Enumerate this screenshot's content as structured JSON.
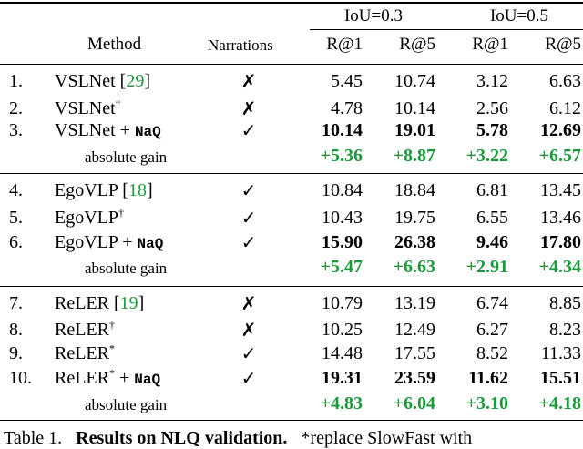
{
  "header": {
    "method": "Method",
    "narrations": "Narrations",
    "group1": "IoU=0.3",
    "group2": "IoU=0.5",
    "metrics": [
      "R@1",
      "R@5",
      "R@1",
      "R@5"
    ]
  },
  "rows": [
    {
      "idx": "1.",
      "name": "VSLNet",
      "cite": "29",
      "sup": "",
      "naq": "",
      "mark": "✗",
      "values": [
        "5.45",
        "10.74",
        "3.12",
        "6.63"
      ]
    },
    {
      "idx": "2.",
      "name": "VSLNet",
      "cite": "",
      "sup": "†",
      "naq": "",
      "mark": "✗",
      "values": [
        "4.78",
        "10.14",
        "2.56",
        "6.12"
      ]
    },
    {
      "idx": "3.",
      "name": "VSLNet + ",
      "cite": "",
      "sup": "",
      "naq": "NaQ",
      "mark": "✓",
      "values": [
        "10.14",
        "19.01",
        "5.78",
        "12.69"
      ]
    },
    {
      "idx": "",
      "name": "absolute gain",
      "cite": "",
      "sup": "",
      "naq": "",
      "mark": "",
      "values": [
        "+5.36",
        "+8.87",
        "+3.22",
        "+6.57"
      ]
    },
    {
      "idx": "4.",
      "name": "EgoVLP",
      "cite": "18",
      "sup": "",
      "naq": "",
      "mark": "✓",
      "values": [
        "10.84",
        "18.84",
        "6.81",
        "13.45"
      ]
    },
    {
      "idx": "5.",
      "name": "EgoVLP",
      "cite": "",
      "sup": "†",
      "naq": "",
      "mark": "✓",
      "values": [
        "10.43",
        "19.75",
        "6.55",
        "13.46"
      ]
    },
    {
      "idx": "6.",
      "name": "EgoVLP + ",
      "cite": "",
      "sup": "",
      "naq": "NaQ",
      "mark": "✓",
      "values": [
        "15.90",
        "26.38",
        "9.46",
        "17.80"
      ]
    },
    {
      "idx": "",
      "name": "absolute gain",
      "cite": "",
      "sup": "",
      "naq": "",
      "mark": "",
      "values": [
        "+5.47",
        "+6.63",
        "+2.91",
        "+4.34"
      ]
    },
    {
      "idx": "7.",
      "name": "ReLER",
      "cite": "19",
      "sup": "",
      "naq": "",
      "mark": "✗",
      "values": [
        "10.79",
        "13.19",
        "6.74",
        "8.85"
      ]
    },
    {
      "idx": "8.",
      "name": "ReLER",
      "cite": "",
      "sup": "†",
      "naq": "",
      "mark": "✗",
      "values": [
        "10.25",
        "12.49",
        "6.27",
        "8.23"
      ]
    },
    {
      "idx": "9.",
      "name": "ReLER",
      "cite": "",
      "sup": "*",
      "naq": "",
      "mark": "✓",
      "values": [
        "14.48",
        "17.55",
        "8.52",
        "11.33"
      ]
    },
    {
      "idx": "10.",
      "name": "ReLER",
      "cite": "",
      "sup": "*",
      "naq": "NaQ",
      "mark": "✓",
      "values": [
        "19.31",
        "23.59",
        "11.62",
        "15.51"
      ]
    },
    {
      "idx": "",
      "name": "absolute gain",
      "cite": "",
      "sup": "",
      "naq": "",
      "mark": "",
      "values": [
        "+4.83",
        "+6.04",
        "+3.10",
        "+4.18"
      ]
    }
  ],
  "caption": {
    "prefix": "Table 1.",
    "bold": "Results on NLQ validation.",
    "rest": "*replace SlowFast with"
  }
}
